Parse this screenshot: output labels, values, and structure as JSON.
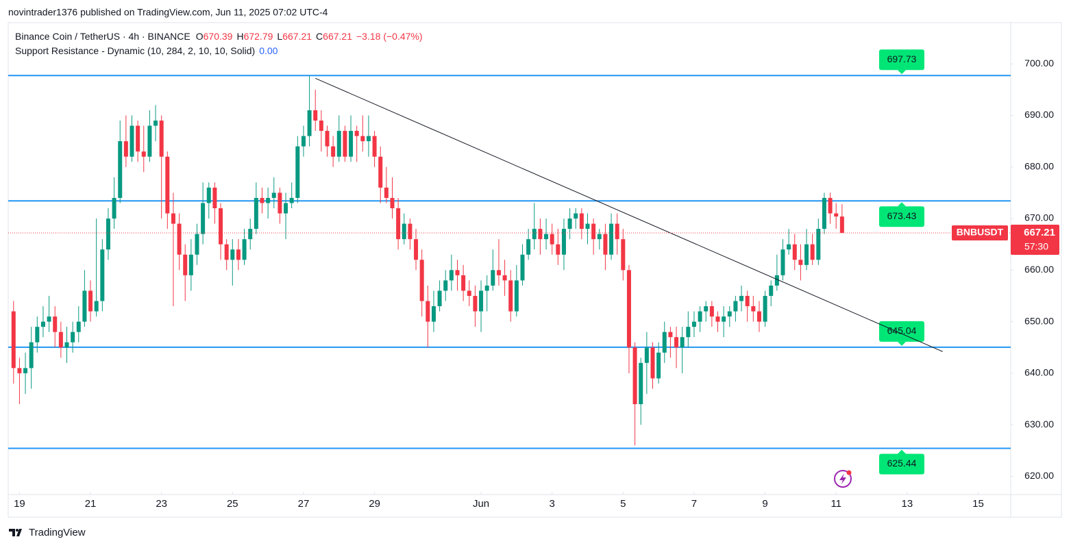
{
  "header": {
    "published": "novintrader1376 published on TradingView.com, Jun 11, 2025 07:02 UTC-4"
  },
  "legend": {
    "symbol": "Binance Coin / TetherUS · 4h · BINANCE",
    "fields": [
      {
        "key": "O",
        "value": 670.39
      },
      {
        "key": "H",
        "value": 672.79
      },
      {
        "key": "L",
        "value": 667.21
      },
      {
        "key": "C",
        "value": 667.21
      }
    ],
    "change": "−3.18 (−0.47%)",
    "indicator": "Support Resistance - Dynamic (10, 284, 2, 10, 10, Solid)",
    "indicator_value": "0.00"
  },
  "footer": {
    "brand": "TradingView"
  },
  "chart_data": {
    "type": "candlestick",
    "up_color": "#089981",
    "down_color": "#f23645",
    "xlim": [
      -0.9,
      168.5
    ],
    "xticks": [
      {
        "value": 1,
        "label": "19"
      },
      {
        "value": 13,
        "label": "21"
      },
      {
        "value": 25,
        "label": "23"
      },
      {
        "value": 37,
        "label": "25"
      },
      {
        "value": 49,
        "label": "27"
      },
      {
        "value": 61,
        "label": "29"
      },
      {
        "value": 79,
        "label": "Jun"
      },
      {
        "value": 91,
        "label": "3"
      },
      {
        "value": 103,
        "label": "5"
      },
      {
        "value": 115,
        "label": "7"
      },
      {
        "value": 127,
        "label": "9"
      },
      {
        "value": 139,
        "label": "11"
      },
      {
        "value": 151,
        "label": "13"
      },
      {
        "value": 163,
        "label": "15"
      }
    ],
    "ylim": [
      617,
      708
    ],
    "yticks": [
      {
        "value": 620,
        "label": "620.00"
      },
      {
        "value": 630,
        "label": "630.00"
      },
      {
        "value": 640,
        "label": "640.00"
      },
      {
        "value": 650,
        "label": "650.00"
      },
      {
        "value": 660,
        "label": "660.00"
      },
      {
        "value": 670,
        "label": "670.00"
      },
      {
        "value": 680,
        "label": "680.00"
      },
      {
        "value": 690,
        "label": "690.00"
      },
      {
        "value": 700,
        "label": "700.00"
      }
    ],
    "levels": [
      697.73,
      673.43,
      645.04,
      625.44
    ],
    "level_color": "#2196f3",
    "level_label_color": "#00e676",
    "trendline": {
      "x": [
        51,
        157
      ],
      "y": [
        697.2,
        644.2
      ]
    },
    "symbol": "BNBUSDT",
    "last_price": 667.21,
    "countdown": "57:30",
    "ohlc": [
      [
        652,
        654,
        638,
        641
      ],
      [
        641,
        643,
        634,
        640
      ],
      [
        640,
        644,
        636,
        641
      ],
      [
        641,
        649,
        637,
        646
      ],
      [
        646,
        651,
        644,
        649
      ],
      [
        649,
        653,
        647,
        650
      ],
      [
        650,
        655,
        648,
        651
      ],
      [
        651,
        653,
        645,
        648
      ],
      [
        648,
        650,
        643,
        645
      ],
      [
        645,
        649,
        642,
        646
      ],
      [
        646,
        650,
        644,
        648
      ],
      [
        648,
        653,
        646,
        650
      ],
      [
        650,
        660,
        649,
        656
      ],
      [
        656,
        658,
        650,
        652
      ],
      [
        652,
        670,
        651,
        654
      ],
      [
        654,
        666,
        652,
        664
      ],
      [
        664,
        672,
        662,
        670
      ],
      [
        670,
        678,
        668,
        674
      ],
      [
        674,
        689,
        673,
        685
      ],
      [
        685,
        690,
        680,
        682
      ],
      [
        682,
        690,
        681,
        688
      ],
      [
        688,
        689,
        681,
        683
      ],
      [
        683,
        688,
        679,
        682
      ],
      [
        682,
        691,
        681,
        688
      ],
      [
        688,
        692,
        685,
        689
      ],
      [
        689,
        690,
        670,
        682
      ],
      [
        682,
        683,
        668,
        671
      ],
      [
        671,
        675,
        653,
        669
      ],
      [
        669,
        671,
        660,
        663
      ],
      [
        663,
        665,
        654,
        659
      ],
      [
        659,
        666,
        656,
        663
      ],
      [
        663,
        669,
        661,
        667
      ],
      [
        667,
        677,
        665,
        673
      ],
      [
        673,
        677,
        670,
        676
      ],
      [
        676,
        677,
        669,
        672
      ],
      [
        672,
        673,
        662,
        665
      ],
      [
        665,
        666,
        660,
        662
      ],
      [
        662,
        666,
        657,
        664
      ],
      [
        664,
        666,
        660,
        662
      ],
      [
        662,
        668,
        661,
        666
      ],
      [
        666,
        670,
        664,
        668
      ],
      [
        668,
        677,
        667,
        674
      ],
      [
        674,
        676,
        671,
        673
      ],
      [
        673,
        676,
        670,
        674
      ],
      [
        674,
        678,
        672,
        675
      ],
      [
        675,
        676,
        669,
        671
      ],
      [
        671,
        675,
        666,
        673
      ],
      [
        673,
        677,
        672,
        674
      ],
      [
        674,
        686,
        673,
        684
      ],
      [
        684,
        688,
        682,
        686
      ],
      [
        686,
        697.7,
        684,
        691
      ],
      [
        691,
        695,
        687,
        689
      ],
      [
        689,
        691,
        683,
        687
      ],
      [
        687,
        688,
        682,
        684
      ],
      [
        684,
        686,
        680,
        682
      ],
      [
        682,
        690,
        681,
        687
      ],
      [
        687,
        688,
        681,
        682
      ],
      [
        682,
        690,
        681,
        687
      ],
      [
        687,
        688,
        681,
        686
      ],
      [
        686,
        690,
        683,
        685
      ],
      [
        685,
        690,
        682,
        686
      ],
      [
        686,
        687,
        680,
        682
      ],
      [
        682,
        684,
        673,
        676
      ],
      [
        676,
        680,
        673,
        674
      ],
      [
        674,
        678,
        670,
        672
      ],
      [
        672,
        674,
        664,
        666
      ],
      [
        666,
        671,
        665,
        669
      ],
      [
        669,
        670,
        664,
        666
      ],
      [
        666,
        668,
        660,
        662
      ],
      [
        662,
        664,
        651,
        654
      ],
      [
        654,
        657,
        645,
        650
      ],
      [
        650,
        656,
        648,
        653
      ],
      [
        653,
        658,
        652,
        656
      ],
      [
        656,
        660,
        654,
        658
      ],
      [
        658,
        663,
        656,
        660
      ],
      [
        660,
        662,
        656,
        659
      ],
      [
        659,
        661,
        654,
        656
      ],
      [
        656,
        658,
        653,
        655
      ],
      [
        655,
        657,
        649,
        652
      ],
      [
        652,
        658,
        648,
        656
      ],
      [
        656,
        659,
        652,
        657
      ],
      [
        657,
        664,
        656,
        660
      ],
      [
        660,
        666,
        657,
        659
      ],
      [
        659,
        662,
        655,
        658
      ],
      [
        658,
        660,
        650,
        652
      ],
      [
        652,
        661,
        651,
        658
      ],
      [
        658,
        665,
        657,
        663
      ],
      [
        663,
        668,
        662,
        666
      ],
      [
        666,
        673,
        664,
        668
      ],
      [
        668,
        670,
        663,
        666
      ],
      [
        666,
        670,
        664,
        667
      ],
      [
        667,
        669,
        663,
        665
      ],
      [
        665,
        668,
        661,
        663
      ],
      [
        663,
        670,
        660,
        668
      ],
      [
        668,
        672,
        666,
        670
      ],
      [
        670,
        672,
        668,
        671
      ],
      [
        671,
        672,
        666,
        668
      ],
      [
        668,
        671,
        665,
        669
      ],
      [
        669,
        670,
        663,
        666
      ],
      [
        666,
        668,
        664,
        667
      ],
      [
        667,
        669,
        660,
        663
      ],
      [
        663,
        671,
        662,
        669
      ],
      [
        669,
        671,
        663,
        666
      ],
      [
        666,
        668,
        658,
        660
      ],
      [
        660,
        661,
        640,
        645
      ],
      [
        645,
        646,
        626,
        634
      ],
      [
        634,
        643,
        630,
        642
      ],
      [
        642,
        648,
        636,
        645
      ],
      [
        645,
        646,
        637,
        639
      ],
      [
        639,
        646,
        638,
        644
      ],
      [
        644,
        650,
        642,
        648
      ],
      [
        648,
        649,
        643,
        647
      ],
      [
        647,
        649,
        641,
        645
      ],
      [
        645,
        649,
        640,
        647
      ],
      [
        647,
        652,
        645,
        649
      ],
      [
        649,
        652,
        647,
        650
      ],
      [
        650,
        653,
        648,
        652
      ],
      [
        652,
        654,
        650,
        653
      ],
      [
        653,
        654,
        649,
        651
      ],
      [
        651,
        652,
        648,
        650
      ],
      [
        650,
        653,
        647,
        651
      ],
      [
        651,
        653,
        649,
        652
      ],
      [
        652,
        655,
        650,
        654
      ],
      [
        654,
        657,
        652,
        655
      ],
      [
        655,
        656,
        650,
        653
      ],
      [
        653,
        655,
        650,
        652
      ],
      [
        652,
        654,
        648,
        650
      ],
      [
        650,
        656,
        649,
        655
      ],
      [
        655,
        658,
        653,
        657
      ],
      [
        657,
        663,
        656,
        659
      ],
      [
        659,
        666,
        658,
        664
      ],
      [
        664,
        668,
        663,
        665
      ],
      [
        665,
        667,
        660,
        662
      ],
      [
        662,
        665,
        658,
        661
      ],
      [
        661,
        668,
        660,
        665
      ],
      [
        665,
        667,
        661,
        662
      ],
      [
        662,
        670,
        661,
        668
      ],
      [
        668,
        675,
        667,
        674
      ],
      [
        674,
        675,
        669,
        671
      ],
      [
        671,
        673,
        668,
        670.39
      ],
      [
        670.39,
        672.79,
        667.21,
        667.21
      ]
    ]
  }
}
